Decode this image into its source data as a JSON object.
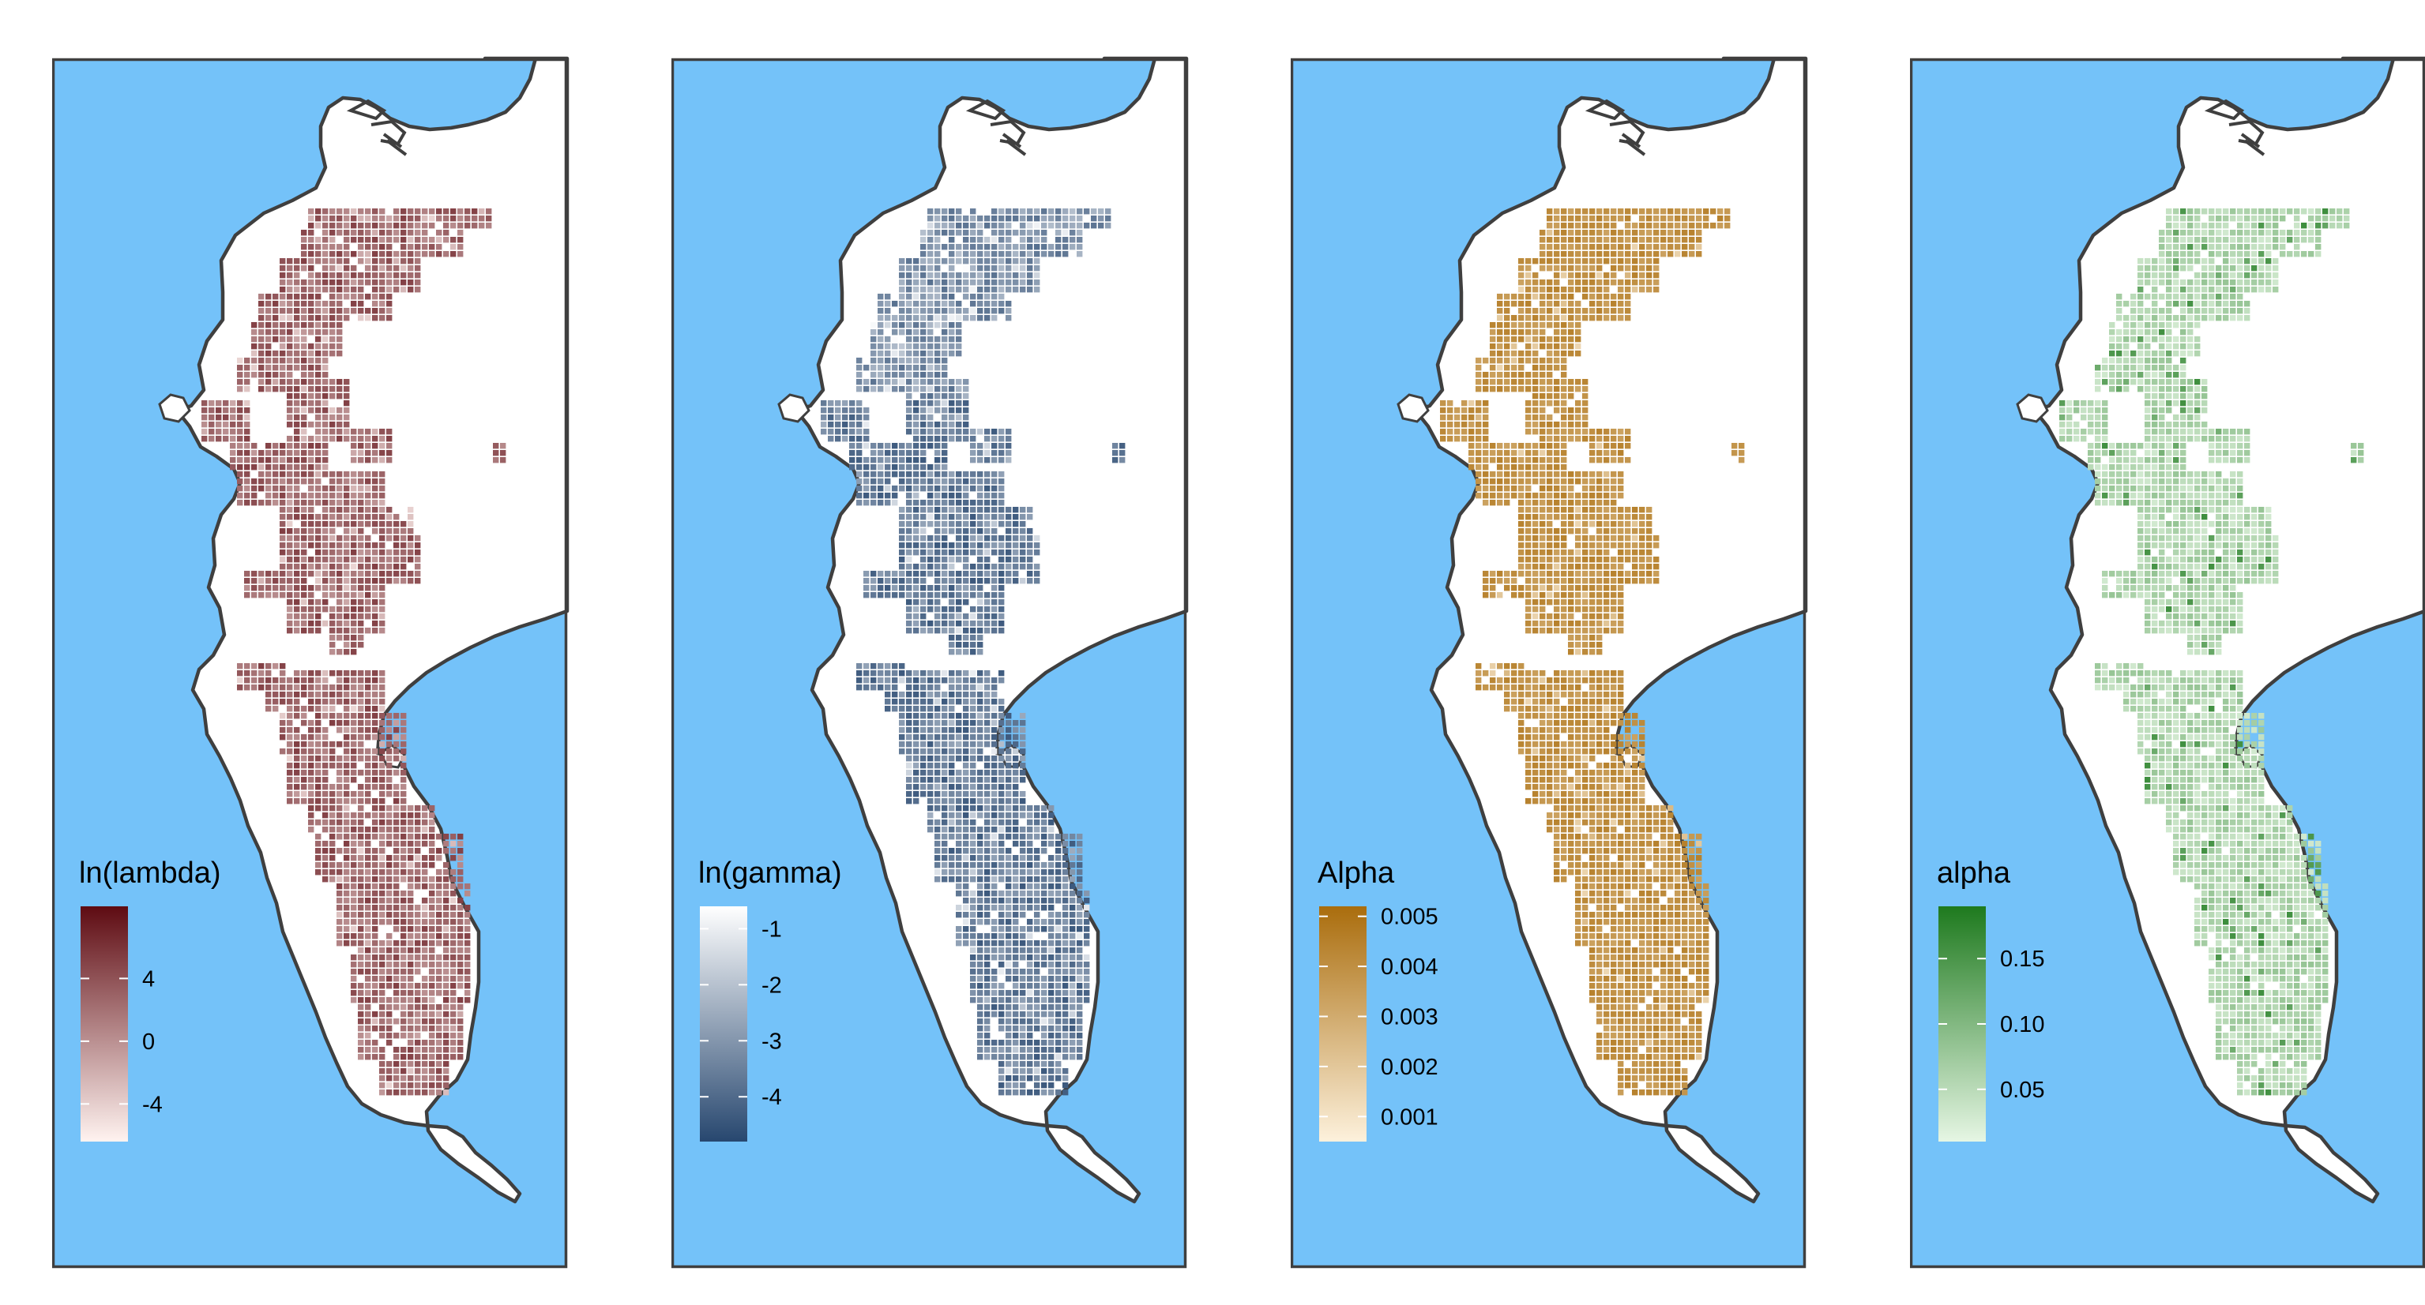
{
  "colors": {
    "sea": "#74C2F9",
    "land": "#FFFFFF",
    "coastline": "#3F3F3F"
  },
  "panels": [
    {
      "title": "ln(lambda)",
      "ticks": [
        "4",
        "0",
        "-4"
      ],
      "tick_values": [
        4,
        0,
        -4
      ],
      "range": [
        -6.4,
        8.6
      ],
      "gradient_low": "#FFF3F0",
      "gradient_high": "#5E0B12"
    },
    {
      "title": "ln(gamma)",
      "ticks": [
        "-1",
        "-2",
        "-3",
        "-4"
      ],
      "tick_values": [
        -1,
        -2,
        -3,
        -4
      ],
      "range": [
        -4.8,
        -0.6
      ],
      "gradient_low": "#27476F",
      "gradient_high": "#FFFFFF"
    },
    {
      "title": "Alpha",
      "ticks": [
        "0.005",
        "0.004",
        "0.003",
        "0.002",
        "0.001"
      ],
      "tick_values": [
        0.005,
        0.004,
        0.003,
        0.002,
        0.001
      ],
      "range": [
        0.0005,
        0.0052
      ],
      "gradient_low": "#FDF1DC",
      "gradient_high": "#AA6D0D"
    },
    {
      "title": "alpha",
      "ticks": [
        "0.15",
        "0.10",
        "0.05"
      ],
      "tick_values": [
        0.15,
        0.1,
        0.05
      ],
      "range": [
        0.01,
        0.19
      ],
      "gradient_low": "#E6F6E4",
      "gradient_high": "#1E7A1E"
    }
  ]
}
